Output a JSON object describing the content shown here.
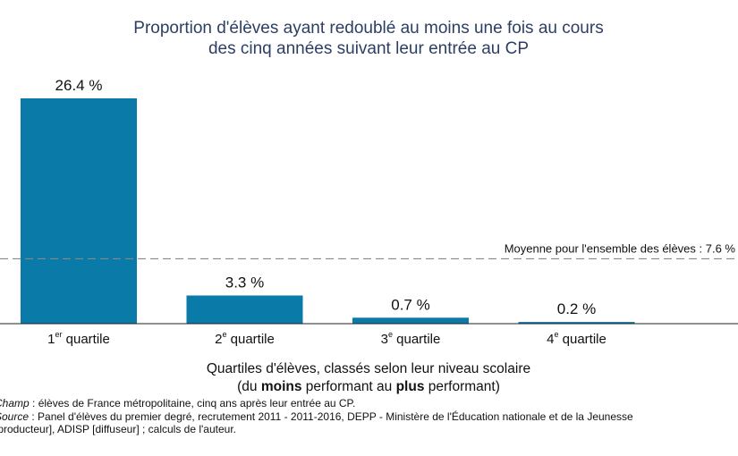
{
  "chart_data": {
    "type": "bar",
    "title_lines": [
      "Proportion d'élèves ayant redoublé au moins une fois au cours",
      "des cinq années suivant leur entrée au CP"
    ],
    "categories": [
      {
        "num": "1",
        "sup": "er",
        "word": "quartile"
      },
      {
        "num": "2",
        "sup": "e",
        "word": "quartile"
      },
      {
        "num": "3",
        "sup": "e",
        "word": "quartile"
      },
      {
        "num": "4",
        "sup": "e",
        "word": "quartile"
      }
    ],
    "values": [
      26.4,
      3.3,
      0.7,
      0.2
    ],
    "value_labels": [
      "26.4 %",
      "3.3 %",
      "0.7 %",
      "0.2 %"
    ],
    "ylim": [
      0,
      28
    ],
    "bar_color": "#0a7aa8",
    "reference_line": {
      "value": 7.6,
      "label": "Moyenne pour l'ensemble des élèves : 7.6 %",
      "color": "#888888",
      "style": "dashed"
    },
    "xlabel": {
      "line1": "Quartiles d'élèves, classés selon leur niveau scolaire",
      "line2_parts": [
        "(du ",
        "moins",
        " performant au ",
        "plus",
        " performant)"
      ]
    },
    "grid": false,
    "legend": "none"
  },
  "notes": {
    "champ_label": "Champ",
    "champ_text": " : élèves de France métropolitaine, cinq ans après leur entrée au CP.",
    "source_label": "Source",
    "source_text": " : Panel d'élèves du premier degré, recrutement 2011 - 2011-2016, DEPP - Ministère de l'Éducation nationale et de la Jeunesse",
    "source_text_2": "[producteur], ADISP [diffuseur] ; calculs de l'auteur."
  }
}
